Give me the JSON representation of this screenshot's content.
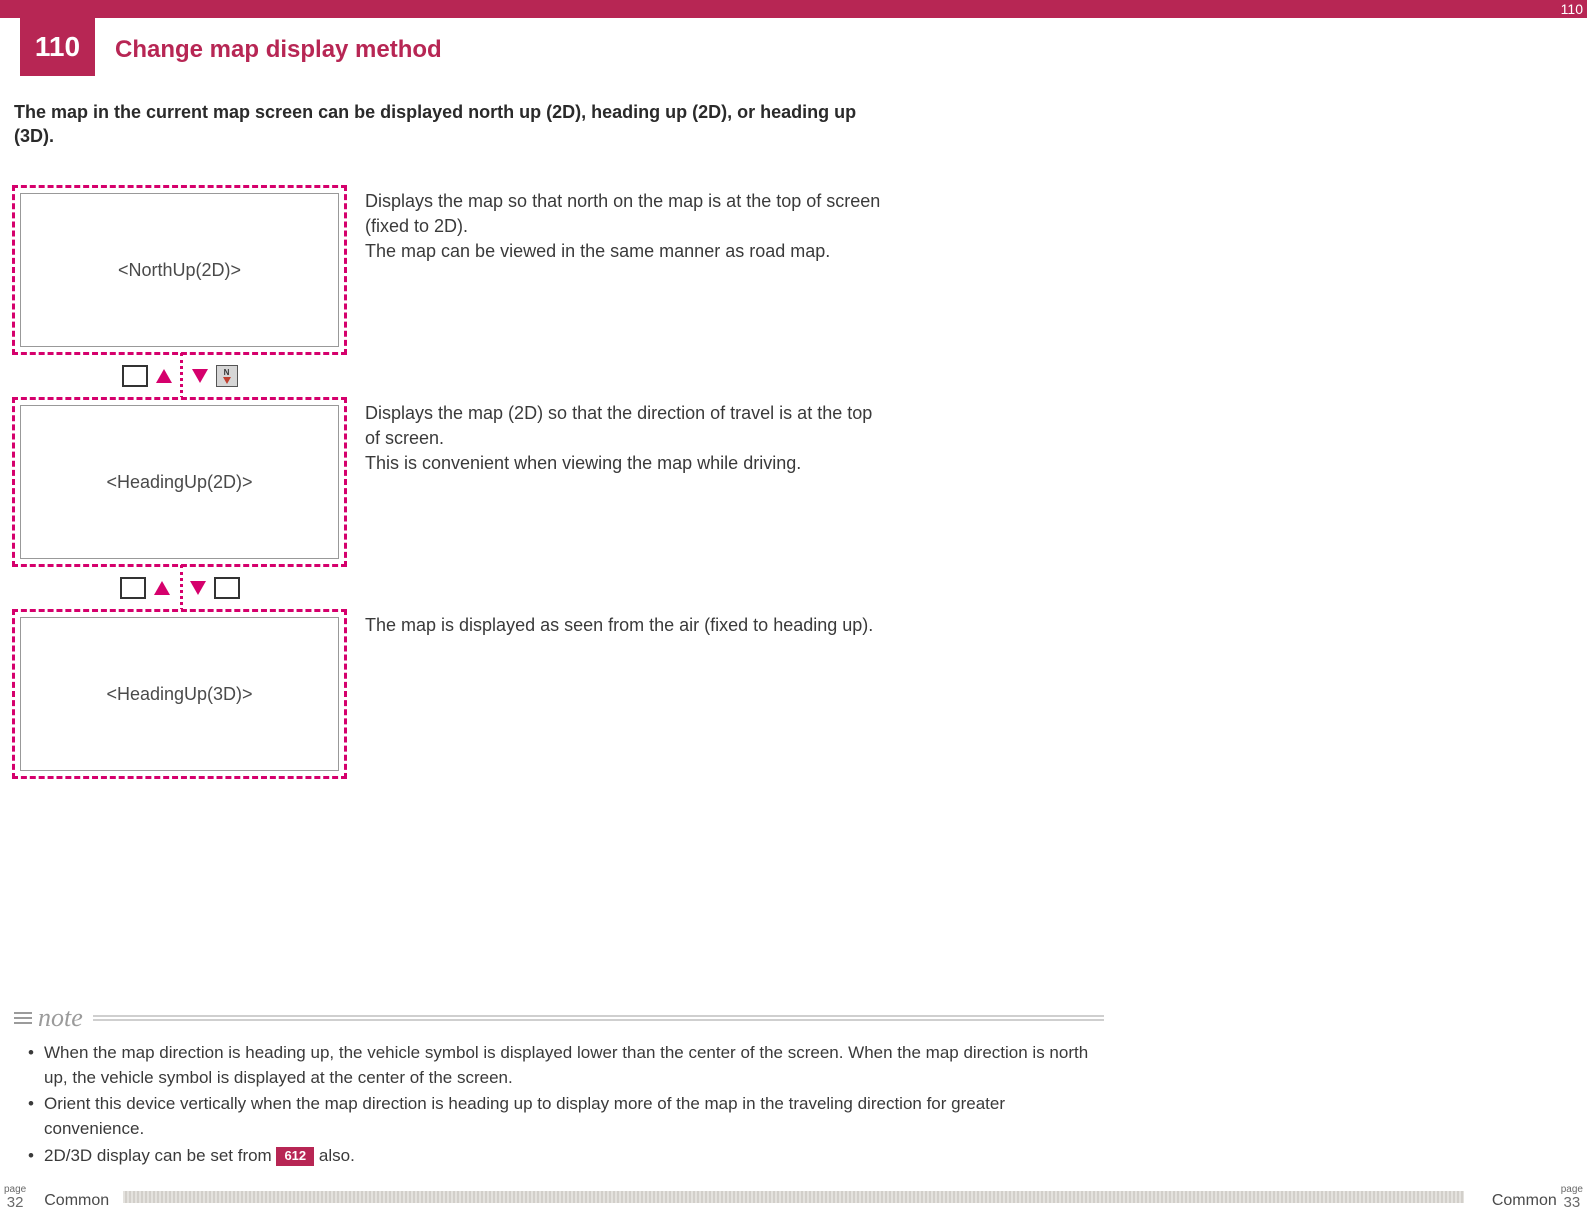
{
  "header": {
    "top_right_num": "110",
    "page_num": "110",
    "title": "Change map display method"
  },
  "intro": "The map in the current map screen can be displayed north up (2D), heading up (2D), or heading up (3D).",
  "modes": [
    {
      "label": "<NorthUp(2D)>",
      "desc": "Displays the map so that north on the map is at the top of screen (fixed to 2D).\nThe map can be viewed in the same manner as road map."
    },
    {
      "label": "<HeadingUp(2D)>",
      "desc": "Displays the map (2D) so that the direction of travel is at the top of screen.\nThis is convenient when viewing the map while driving."
    },
    {
      "label": "<HeadingUp(3D)>",
      "desc": "The map is displayed as seen from the air (fixed to heading up)."
    }
  ],
  "note": {
    "label": "note",
    "items": [
      "When the map direction is heading up, the vehicle symbol is displayed lower than the center of the screen. When the map direction is north up, the vehicle symbol is displayed at the center of the screen.",
      "Orient this device vertically when the map direction is heading up to display more of the map in the traveling direction for greater convenience."
    ],
    "ref_item_pre": "2D/3D display can be set from ",
    "ref_tag": "612",
    "ref_item_post": " also."
  },
  "footer": {
    "page_word": "page",
    "left_num": "32",
    "right_num": "33",
    "section": "Common"
  },
  "colors": {
    "brand": "#b72654",
    "dash": "#d5006c",
    "text": "#3a3a3a",
    "note_gray": "#9b9b9b"
  }
}
